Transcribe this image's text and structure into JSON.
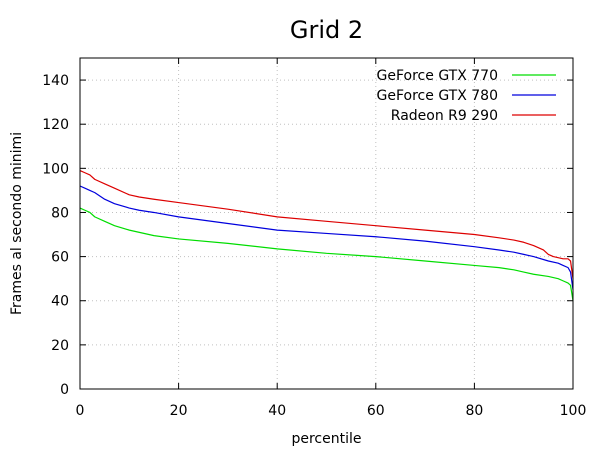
{
  "chart_data": {
    "type": "line",
    "title": "Grid 2",
    "xlabel": "percentile",
    "ylabel": "Frames al secondo minimi",
    "xlim": [
      0,
      100
    ],
    "ylim": [
      0,
      150
    ],
    "xticks": [
      0,
      20,
      40,
      60,
      80,
      100
    ],
    "yticks": [
      0,
      20,
      40,
      60,
      80,
      100,
      120,
      140
    ],
    "grid": true,
    "legend_position": "top-right",
    "series": [
      {
        "name": "GeForce GTX 770",
        "color": "#00dd00",
        "x": [
          0,
          1,
          2,
          3,
          5,
          7,
          10,
          15,
          20,
          30,
          40,
          50,
          60,
          70,
          80,
          85,
          88,
          90,
          92,
          95,
          97,
          98,
          99,
          99.5,
          100
        ],
        "y": [
          82,
          81,
          80,
          78,
          76,
          74,
          72,
          69.5,
          68,
          66,
          63.5,
          61.5,
          60,
          58,
          56,
          55,
          54,
          53,
          52,
          51,
          50,
          49,
          48,
          47,
          40
        ]
      },
      {
        "name": "GeForce GTX 780",
        "color": "#0000dd",
        "x": [
          0,
          1,
          2,
          3,
          5,
          7,
          10,
          12,
          15,
          20,
          30,
          40,
          50,
          60,
          70,
          80,
          85,
          88,
          90,
          92,
          95,
          97,
          98,
          99,
          99.5,
          100
        ],
        "y": [
          92,
          91,
          90,
          89,
          86,
          84,
          82,
          81,
          80,
          78,
          75,
          72,
          70.5,
          69,
          67,
          64.5,
          63,
          62,
          61,
          60,
          58,
          57,
          56,
          55,
          53,
          45
        ]
      },
      {
        "name": "Radeon R9 290",
        "color": "#dd0000",
        "x": [
          0,
          1,
          2,
          3,
          5,
          7,
          10,
          12,
          15,
          20,
          30,
          40,
          50,
          60,
          70,
          80,
          85,
          88,
          90,
          92,
          94,
          95,
          96,
          97,
          98,
          99,
          99.5,
          100
        ],
        "y": [
          99,
          98,
          97,
          95,
          93,
          91,
          88,
          87,
          86,
          84.5,
          81.5,
          78,
          76,
          74,
          72,
          70,
          68.5,
          67.5,
          66.5,
          65,
          63,
          61,
          60,
          59.5,
          59,
          59,
          58,
          50
        ]
      }
    ]
  }
}
